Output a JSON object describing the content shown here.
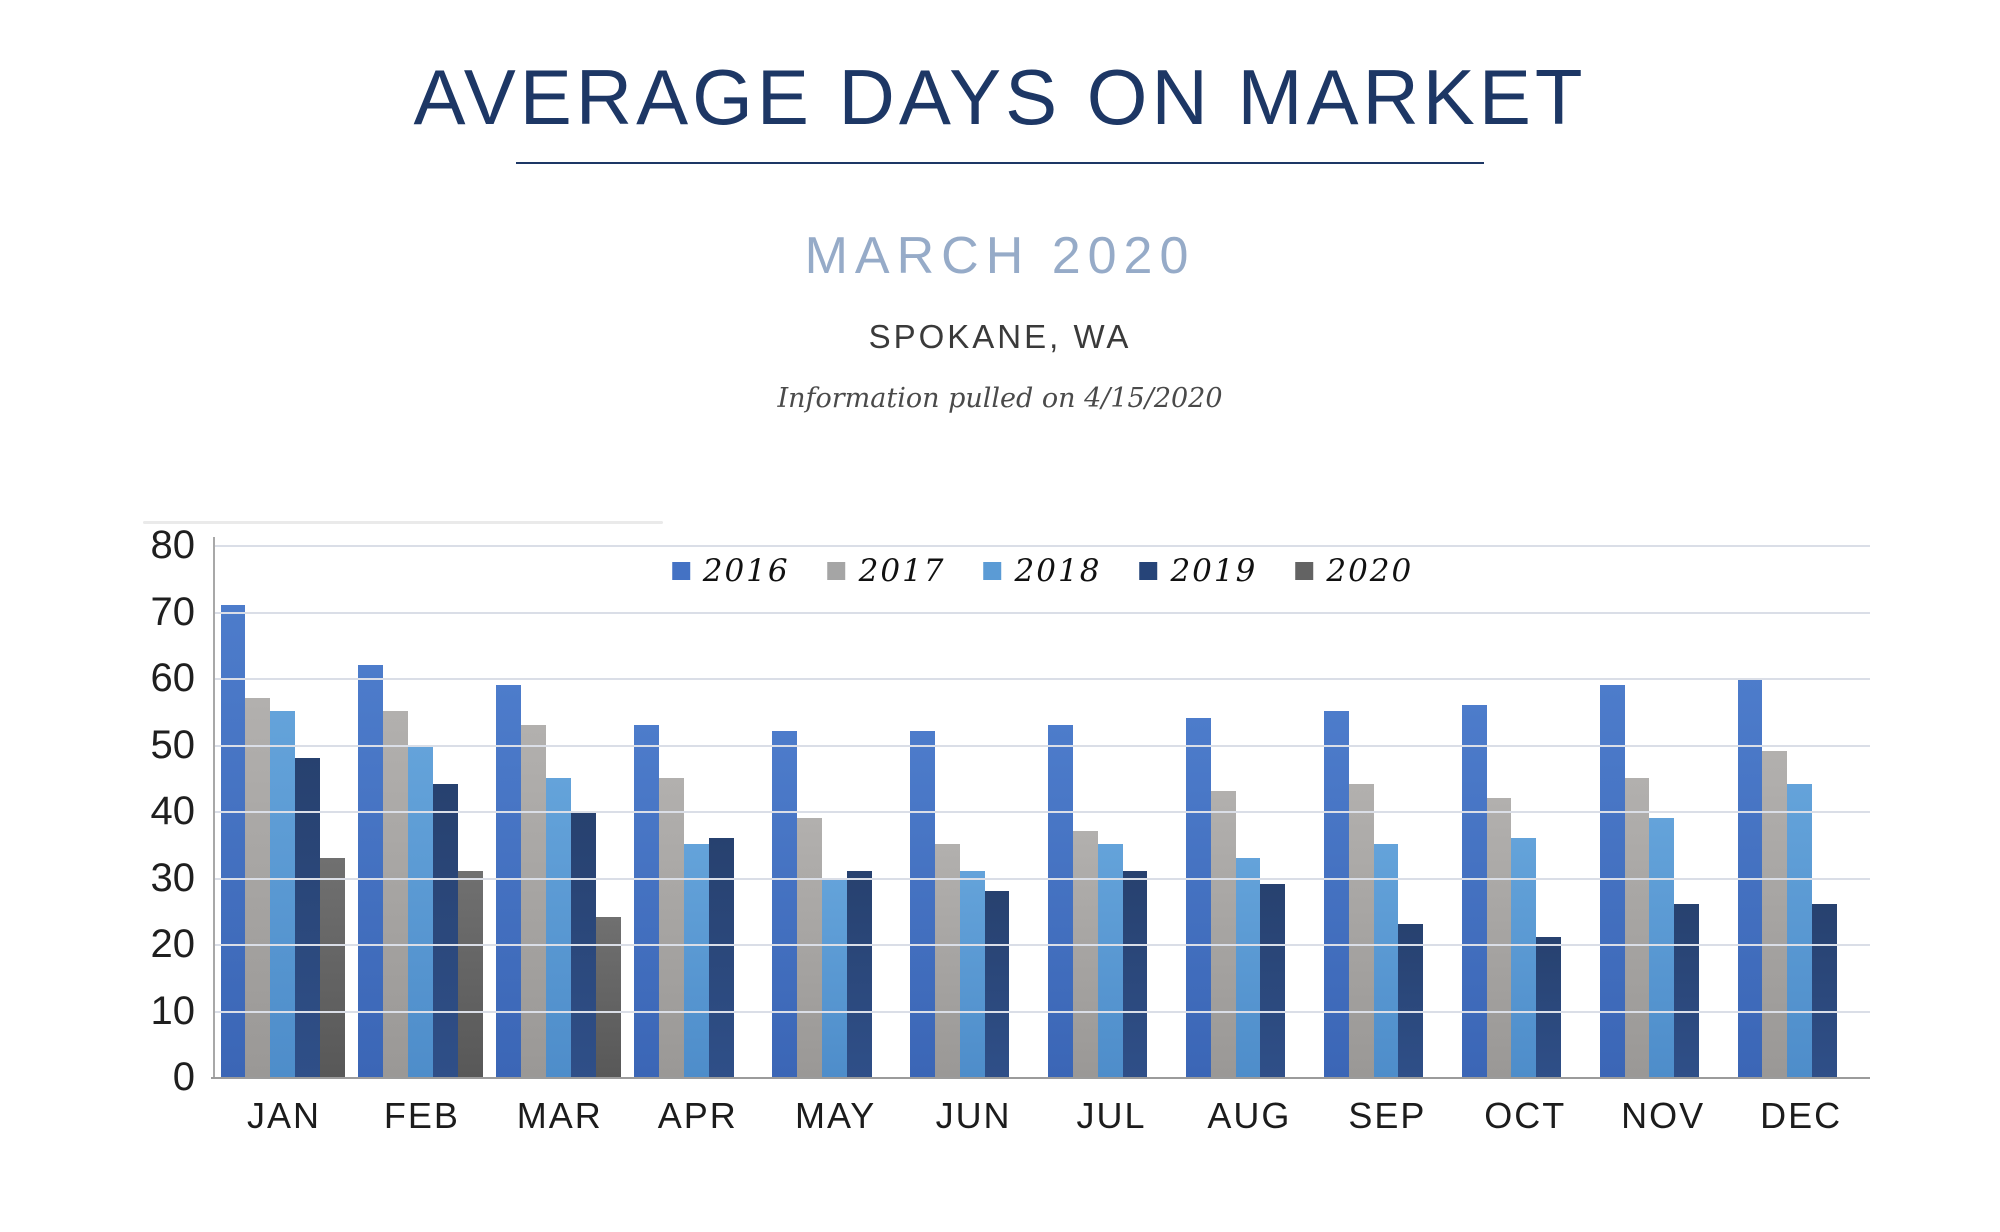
{
  "header": {
    "title": "AVERAGE DAYS ON MARKET",
    "subtitle": "MARCH 2020",
    "location": "SPOKANE, WA",
    "note": "Information pulled on 4/15/2020"
  },
  "colors": {
    "title_navy": "#1d3765",
    "subtitle_blue": "#96abc8",
    "gridline": "#dadee7",
    "axis_line": "#9b9b9b"
  },
  "chart_data": {
    "type": "bar",
    "categories": [
      "JAN",
      "FEB",
      "MAR",
      "APR",
      "MAY",
      "JUN",
      "JUL",
      "AUG",
      "SEP",
      "OCT",
      "NOV",
      "DEC"
    ],
    "series": [
      {
        "name": "2016",
        "color": "#4472C4",
        "color_top": "#4d7ccb",
        "color_bottom": "#3b66b6",
        "values": [
          71,
          62,
          59,
          53,
          52,
          52,
          53,
          54,
          55,
          56,
          59,
          60
        ]
      },
      {
        "name": "2017",
        "color": "#A5A5A5",
        "color_top": "#b2b0ae",
        "color_bottom": "#9a9896",
        "values": [
          57,
          55,
          53,
          45,
          39,
          35,
          37,
          43,
          44,
          42,
          45,
          49
        ]
      },
      {
        "name": "2018",
        "color": "#5B9BD5",
        "color_top": "#64a3da",
        "color_bottom": "#4e8dca",
        "values": [
          55,
          50,
          45,
          35,
          30,
          31,
          35,
          33,
          35,
          36,
          39,
          44
        ]
      },
      {
        "name": "2019",
        "color": "#264478",
        "color_top": "#27416f",
        "color_bottom": "#2f4f88",
        "values": [
          48,
          44,
          40,
          36,
          31,
          28,
          31,
          29,
          23,
          21,
          26,
          26
        ]
      },
      {
        "name": "2020",
        "color": "#636363",
        "color_top": "#707070",
        "color_bottom": "#585858",
        "values": [
          33,
          31,
          24,
          null,
          null,
          null,
          null,
          null,
          null,
          null,
          null,
          null
        ]
      }
    ],
    "ylim": [
      0,
      80
    ],
    "yticks": [
      0,
      10,
      20,
      30,
      40,
      50,
      60,
      70,
      80
    ],
    "grid": true,
    "legend_position": "top-center",
    "xlabel": "",
    "ylabel": ""
  }
}
